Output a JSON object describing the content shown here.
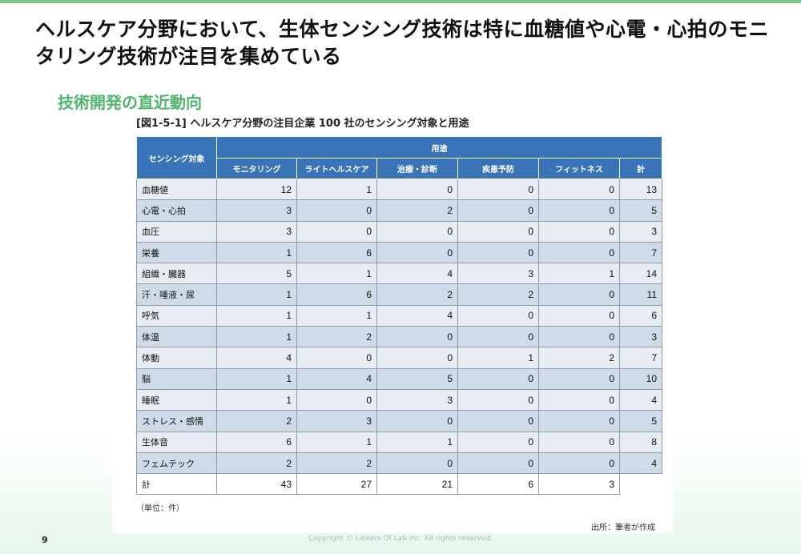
{
  "slide": {
    "headline": "ヘルスケア分野において、生体センシング技術は特に血糖値や心電・心拍のモニタリング技術が注目を集めている",
    "subheading": "技術開発の直近動向",
    "figure_caption": "[図1-5-1] ヘルスケア分野の注目企業 100 社のセンシング対象と用途",
    "unit_note": "（単位：件）",
    "source_note": "出所：筆者が作成",
    "page_number": "9",
    "copyright": "Copyright © Linkers Of Lab Inc. All rights reserved.",
    "accent_color": "#4fb56a",
    "header_color": "#3a74b8"
  },
  "table": {
    "row_header_label": "センシング対象",
    "group_label": "用途",
    "columns": [
      "モニタリング",
      "ライトヘルスケア",
      "治療・診断",
      "疾患予防",
      "フィットネス",
      "計"
    ],
    "rows": [
      {
        "label": "血糖値",
        "values": [
          "12",
          "1",
          "0",
          "0",
          "0",
          "13"
        ]
      },
      {
        "label": "心電・心拍",
        "values": [
          "3",
          "0",
          "2",
          "0",
          "0",
          "5"
        ]
      },
      {
        "label": "血圧",
        "values": [
          "3",
          "0",
          "0",
          "0",
          "0",
          "3"
        ]
      },
      {
        "label": "栄養",
        "values": [
          "1",
          "6",
          "0",
          "0",
          "0",
          "7"
        ]
      },
      {
        "label": "組織・臓器",
        "values": [
          "5",
          "1",
          "4",
          "3",
          "1",
          "14"
        ]
      },
      {
        "label": "汗・唾液・尿",
        "values": [
          "1",
          "6",
          "2",
          "2",
          "0",
          "11"
        ]
      },
      {
        "label": "呼気",
        "values": [
          "1",
          "1",
          "4",
          "0",
          "0",
          "6"
        ]
      },
      {
        "label": "体温",
        "values": [
          "1",
          "2",
          "0",
          "0",
          "0",
          "3"
        ]
      },
      {
        "label": "体動",
        "values": [
          "4",
          "0",
          "0",
          "1",
          "2",
          "7"
        ]
      },
      {
        "label": "脳",
        "values": [
          "1",
          "4",
          "5",
          "0",
          "0",
          "10"
        ]
      },
      {
        "label": "睡眠",
        "values": [
          "1",
          "0",
          "3",
          "0",
          "0",
          "4"
        ]
      },
      {
        "label": "ストレス・感情",
        "values": [
          "2",
          "3",
          "0",
          "0",
          "0",
          "5"
        ]
      },
      {
        "label": "生体音",
        "values": [
          "6",
          "1",
          "1",
          "0",
          "0",
          "8"
        ]
      },
      {
        "label": "フェムテック",
        "values": [
          "2",
          "2",
          "0",
          "0",
          "0",
          "4"
        ]
      }
    ],
    "total": {
      "label": "計",
      "values": [
        "43",
        "27",
        "21",
        "6",
        "3"
      ]
    }
  }
}
